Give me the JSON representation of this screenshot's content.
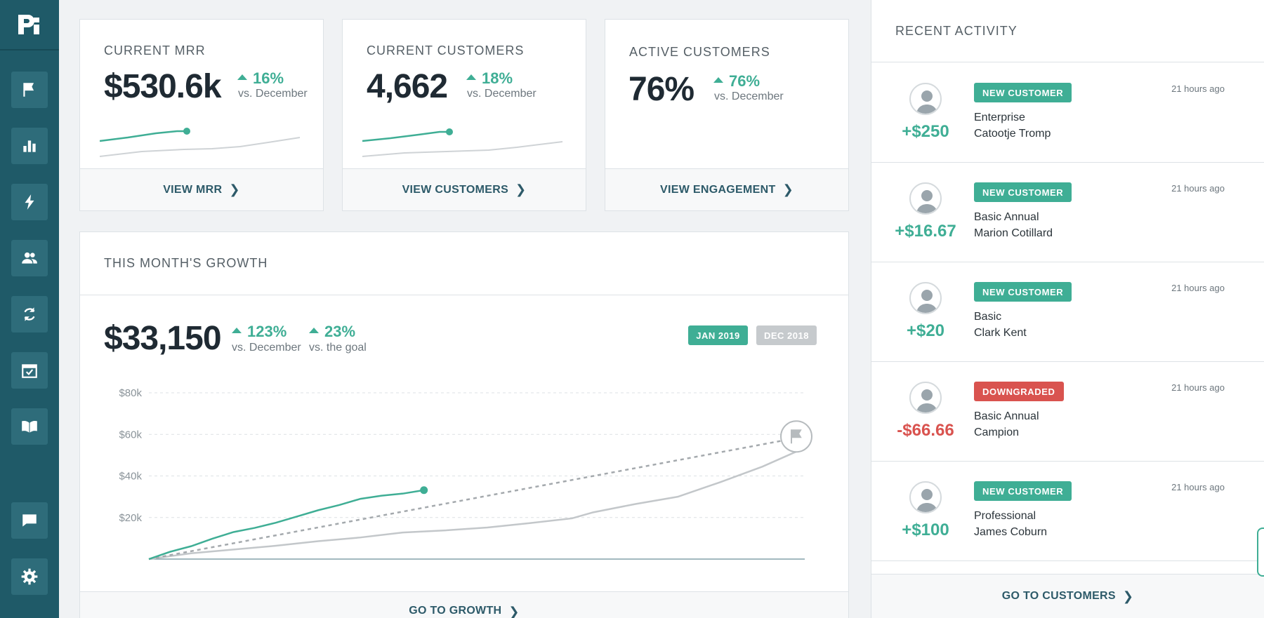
{
  "colors": {
    "sidebar": "#1f5a68",
    "accent": "#3fae95",
    "negative": "#d9534f",
    "muted": "#bfc4c7"
  },
  "metrics": [
    {
      "title": "CURRENT MRR",
      "value": "$530.6k",
      "delta": "16%",
      "delta_sub": "vs. December",
      "link": "VIEW MRR"
    },
    {
      "title": "CURRENT CUSTOMERS",
      "value": "4,662",
      "delta": "18%",
      "delta_sub": "vs. December",
      "link": "VIEW CUSTOMERS"
    },
    {
      "title": "ACTIVE CUSTOMERS",
      "value": "76%",
      "delta": "76%",
      "delta_sub": "vs. December",
      "link": "VIEW ENGAGEMENT"
    }
  ],
  "growth": {
    "title": "THIS MONTH'S GROWTH",
    "value": "$33,150",
    "delta1": "123%",
    "delta1_sub": "vs. December",
    "delta2": "23%",
    "delta2_sub": "vs. the goal",
    "period_current": "JAN 2019",
    "period_previous": "DEC 2018",
    "link": "GO TO GROWTH"
  },
  "chart_data": {
    "type": "line",
    "yticks": [
      "$80k",
      "$60k",
      "$40k",
      "$20k"
    ],
    "ylim": [
      0,
      80000
    ],
    "xlim": [
      0,
      31
    ],
    "grid": true,
    "series": [
      {
        "name": "JAN 2019",
        "x": [
          0,
          1,
          2,
          3,
          4,
          5,
          6,
          7,
          8,
          9,
          10,
          11,
          12,
          13
        ],
        "values": [
          0,
          3500,
          6200,
          9800,
          13000,
          15000,
          17500,
          20500,
          23500,
          26000,
          29000,
          30500,
          31500,
          33150
        ]
      },
      {
        "name": "DEC 2018",
        "x": [
          0,
          2,
          4,
          6,
          8,
          10,
          12,
          14,
          16,
          18,
          20,
          21,
          23,
          25,
          27,
          29,
          31
        ],
        "values": [
          0,
          2800,
          4600,
          6400,
          8600,
          10400,
          12800,
          13800,
          15200,
          17300,
          19600,
          22500,
          26500,
          30000,
          37000,
          44500,
          53500
        ]
      },
      {
        "name": "goal",
        "x": [
          0,
          31
        ],
        "values": [
          0,
          59000
        ]
      }
    ]
  },
  "activity": {
    "title": "RECENT ACTIVITY",
    "items": [
      {
        "amount": "+$250",
        "badge": "NEW CUSTOMER",
        "badge_type": "new",
        "plan": "Enterprise",
        "customer": "Catootje Tromp",
        "time": "21 hours ago"
      },
      {
        "amount": "+$16.67",
        "badge": "NEW CUSTOMER",
        "badge_type": "new",
        "plan": "Basic Annual",
        "customer": "Marion Cotillard",
        "time": "21 hours ago"
      },
      {
        "amount": "+$20",
        "badge": "NEW CUSTOMER",
        "badge_type": "new",
        "plan": "Basic",
        "customer": "Clark Kent",
        "time": "21 hours ago"
      },
      {
        "amount": "-$66.66",
        "badge": "DOWNGRADED",
        "badge_type": "down",
        "plan": "Basic Annual",
        "customer": "Campion",
        "time": "21 hours ago"
      },
      {
        "amount": "+$100",
        "badge": "NEW CUSTOMER",
        "badge_type": "new",
        "plan": "Professional",
        "customer": "James Coburn",
        "time": "21 hours ago"
      }
    ],
    "link": "GO TO CUSTOMERS"
  },
  "sidebar": {
    "items": [
      "flag-icon",
      "bar-chart-icon",
      "lightning-icon",
      "users-icon",
      "refresh-icon",
      "calendar-check-icon",
      "book-icon"
    ],
    "bottom": [
      "chat-icon",
      "gear-icon"
    ]
  }
}
